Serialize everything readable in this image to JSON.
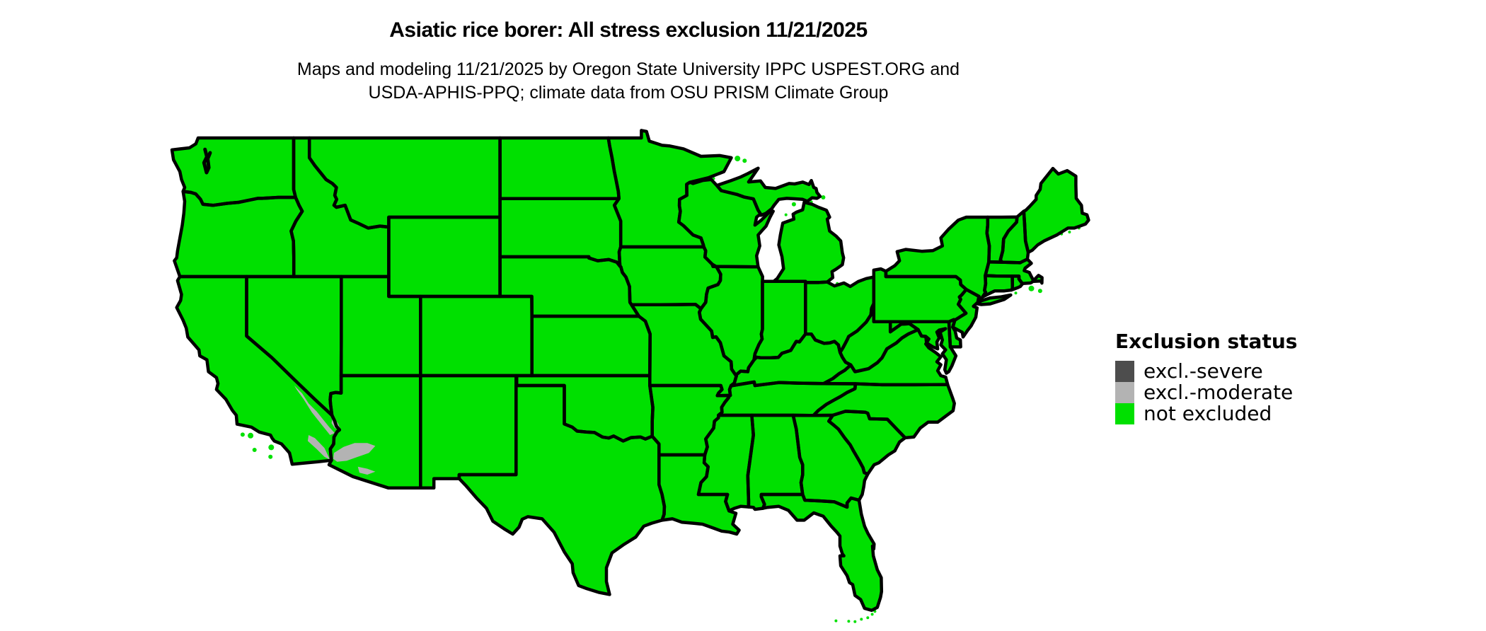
{
  "title": "Asiatic rice borer: All stress exclusion 11/21/2025",
  "subtitle": {
    "line1": "Maps and modeling 11/21/2025 by Oregon State University IPPC USPEST.ORG and",
    "line2": "USDA-APHIS-PPQ; climate data from OSU PRISM Climate Group"
  },
  "legend": {
    "title": "Exclusion status",
    "items": [
      {
        "label": "excl.-severe",
        "color": "#4d4d4d"
      },
      {
        "label": "excl.-moderate",
        "color": "#b3b3b3"
      },
      {
        "label": "not excluded",
        "color": "#00e000"
      }
    ]
  },
  "map": {
    "type": "choropleth",
    "region": "Contiguous United States",
    "background_color": "#ffffff",
    "border_color": "#000000",
    "default_status": "not excluded",
    "default_fill": "#00e000",
    "moderate_fill": "#b3b3b3",
    "moderate_patch_regions": [
      "southeastern California desert",
      "southwestern Arizona desert"
    ]
  }
}
